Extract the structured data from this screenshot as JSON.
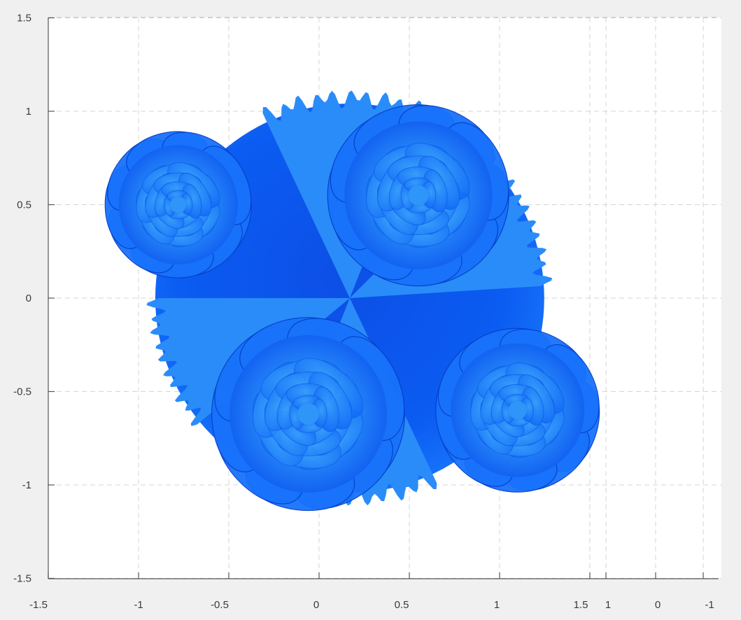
{
  "chart_data": {
    "type": "surface",
    "title": "",
    "xlabel": "",
    "ylabel": "",
    "xlim": [
      -1.5,
      1.5
    ],
    "ylim": [
      -1.5,
      1.5
    ],
    "grid": true,
    "grid_style": "dashed",
    "x_ticks": [
      -1.5,
      -1,
      -0.5,
      0,
      0.5,
      1,
      1.5
    ],
    "x_tick_labels": [
      "-1.5",
      "-1",
      "-0.5",
      "0",
      "0.5",
      "1",
      "1.5"
    ],
    "x_extra_tick_labels": [
      "1",
      "0",
      "-1"
    ],
    "y_ticks": [
      1.5,
      1,
      0.5,
      0,
      -0.5,
      -1,
      -1.5
    ],
    "y_tick_labels": [
      "1.5",
      "1",
      "0.5",
      "0",
      "-0.5",
      "-1",
      "-1.5"
    ],
    "surface": {
      "shape": "ball of roses",
      "roses": [
        {
          "name": "rose-top",
          "cx": 0.55,
          "cy": 0.55,
          "r": 0.62
        },
        {
          "name": "rose-left",
          "cx": -0.78,
          "cy": 0.5,
          "r": 0.5
        },
        {
          "name": "rose-bottom",
          "cx": -0.06,
          "cy": -0.62,
          "r": 0.66
        },
        {
          "name": "rose-right",
          "cx": 1.1,
          "cy": -0.6,
          "r": 0.56
        }
      ],
      "colors": {
        "base": "#0a55f0",
        "petal_mid": "#1872fb",
        "petal_light": "#36a6fc",
        "edge_dark": "#0640c8",
        "fringe": "#2a8cf8"
      }
    },
    "colors": {
      "plot_background": "#ffffff",
      "figure_background": "#f0f0f0",
      "axis": "#555555",
      "grid": "#d6d6d6"
    }
  }
}
